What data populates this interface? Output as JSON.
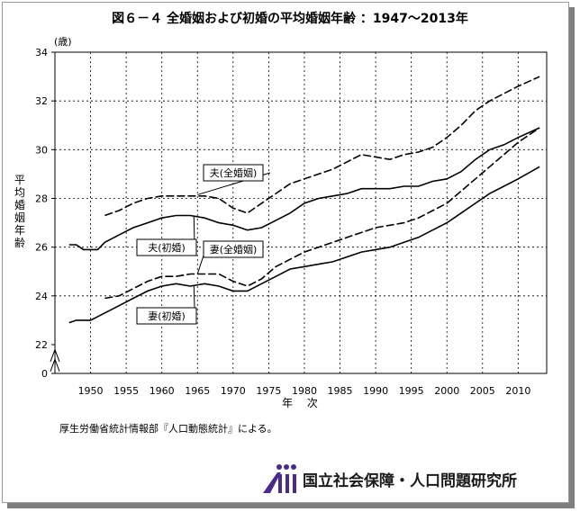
{
  "title": "図６－４ 全婚姻および初婚の平均婚姻年齢 ：1947～2013年",
  "source": "厚生労働省統計情報部『人口動態統計』による。",
  "org": {
    "name": "国立社会保障・人口問題研究所",
    "logo_icon": "ipss-logo-icon",
    "logo_color": "#4a2a8a"
  },
  "chart_data": {
    "type": "line",
    "ylabel": "平均婚姻年齢",
    "yunit": "(歳)",
    "xlabel": "年 次",
    "xlim": [
      1945,
      2014
    ],
    "ylim": [
      20,
      34
    ],
    "y_axis_break": true,
    "xticks": [
      1950,
      1955,
      1960,
      1965,
      1970,
      1975,
      1980,
      1985,
      1990,
      1995,
      2000,
      2005,
      2010
    ],
    "yticks": [
      0,
      22,
      24,
      26,
      28,
      30,
      32,
      34
    ],
    "grid": true,
    "series": [
      {
        "name": "夫(全婚姻)",
        "dashed": true,
        "x": [
          1952,
          1954,
          1956,
          1958,
          1960,
          1962,
          1964,
          1966,
          1968,
          1970,
          1972,
          1974,
          1976,
          1978,
          1980,
          1982,
          1984,
          1986,
          1988,
          1990,
          1992,
          1994,
          1996,
          1998,
          2000,
          2002,
          2004,
          2006,
          2008,
          2010,
          2013
        ],
        "y": [
          27.3,
          27.5,
          27.8,
          28.0,
          28.1,
          28.1,
          28.1,
          28.1,
          28.0,
          27.6,
          27.4,
          27.8,
          28.2,
          28.6,
          28.8,
          29.0,
          29.2,
          29.5,
          29.8,
          29.7,
          29.6,
          29.8,
          29.9,
          30.1,
          30.5,
          31.0,
          31.6,
          32.0,
          32.3,
          32.6,
          33.0
        ]
      },
      {
        "name": "夫(初婚)",
        "dashed": false,
        "x": [
          1947,
          1948,
          1949,
          1950,
          1951,
          1952,
          1954,
          1956,
          1958,
          1960,
          1962,
          1964,
          1966,
          1968,
          1970,
          1972,
          1974,
          1976,
          1978,
          1980,
          1982,
          1984,
          1986,
          1988,
          1990,
          1992,
          1994,
          1996,
          1998,
          2000,
          2002,
          2004,
          2006,
          2008,
          2010,
          2013
        ],
        "y": [
          26.1,
          26.1,
          25.9,
          25.9,
          25.9,
          26.2,
          26.5,
          26.8,
          27.0,
          27.2,
          27.3,
          27.3,
          27.2,
          27.0,
          26.9,
          26.7,
          26.8,
          27.1,
          27.4,
          27.8,
          28.0,
          28.1,
          28.2,
          28.4,
          28.4,
          28.4,
          28.5,
          28.5,
          28.7,
          28.8,
          29.1,
          29.6,
          30.0,
          30.2,
          30.5,
          30.9
        ]
      },
      {
        "name": "妻(全婚姻)",
        "dashed": true,
        "x": [
          1952,
          1954,
          1956,
          1958,
          1960,
          1962,
          1964,
          1966,
          1968,
          1970,
          1972,
          1974,
          1976,
          1978,
          1980,
          1982,
          1984,
          1986,
          1988,
          1990,
          1992,
          1994,
          1996,
          1998,
          2000,
          2002,
          2004,
          2006,
          2008,
          2010,
          2013
        ],
        "y": [
          23.9,
          24.0,
          24.3,
          24.6,
          24.8,
          24.8,
          24.9,
          24.9,
          24.9,
          24.6,
          24.4,
          24.7,
          25.2,
          25.5,
          25.8,
          26.0,
          26.2,
          26.4,
          26.6,
          26.8,
          26.9,
          27.0,
          27.2,
          27.5,
          27.8,
          28.3,
          28.8,
          29.3,
          29.8,
          30.3,
          30.9
        ]
      },
      {
        "name": "妻(初婚)",
        "dashed": false,
        "x": [
          1947,
          1948,
          1950,
          1952,
          1954,
          1956,
          1958,
          1960,
          1962,
          1964,
          1966,
          1968,
          1970,
          1972,
          1974,
          1976,
          1978,
          1980,
          1982,
          1984,
          1986,
          1988,
          1990,
          1992,
          1994,
          1996,
          1998,
          2000,
          2002,
          2004,
          2006,
          2008,
          2010,
          2013
        ],
        "y": [
          22.9,
          23.0,
          23.0,
          23.3,
          23.6,
          23.9,
          24.2,
          24.4,
          24.5,
          24.4,
          24.5,
          24.4,
          24.2,
          24.2,
          24.5,
          24.8,
          25.1,
          25.2,
          25.3,
          25.4,
          25.6,
          25.8,
          25.9,
          26.0,
          26.2,
          26.4,
          26.7,
          27.0,
          27.4,
          27.8,
          28.2,
          28.5,
          28.8,
          29.3
        ]
      }
    ],
    "labels": [
      "夫(全婚姻)",
      "夫(初婚)",
      "妻(全婚姻)",
      "妻(初婚)"
    ]
  }
}
